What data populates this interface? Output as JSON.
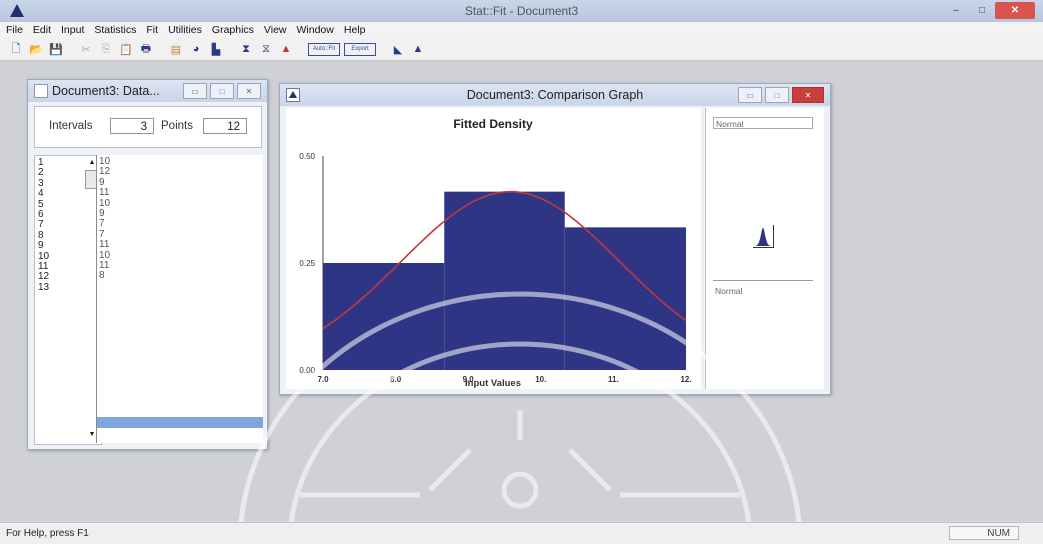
{
  "app": {
    "title": "Stat::Fit - Document3",
    "window_buttons": {
      "minimize": "–",
      "maximize": "□",
      "close": "✕"
    }
  },
  "menu": [
    "File",
    "Edit",
    "Input",
    "Statistics",
    "Fit",
    "Utilities",
    "Graphics",
    "View",
    "Window",
    "Help"
  ],
  "toolbar": {
    "auto_fit_label": "Auto::Fit",
    "export_label": "Export"
  },
  "data_window": {
    "title": "Document3: Data...",
    "intervals_label": "Intervals",
    "intervals_value": "3",
    "points_label": "Points",
    "points_value": "12",
    "row_numbers": [
      "1",
      "2",
      "3",
      "4",
      "5",
      "6",
      "7",
      "8",
      "9",
      "10",
      "11",
      "12",
      "13"
    ],
    "values": [
      "10",
      "12",
      "9",
      "11",
      "10",
      "9",
      "7",
      "7",
      "11",
      "10",
      "11",
      "8"
    ],
    "selected_row": 13
  },
  "graph_window": {
    "title": "Document3: Comparison Graph"
  },
  "chart_data": {
    "type": "bar",
    "title": "Fitted Density",
    "xlabel": "Input Values",
    "ylabel": "",
    "xlim": [
      7.0,
      12.0
    ],
    "ylim": [
      0.0,
      0.5
    ],
    "x_ticks": [
      "7.0",
      "8.0",
      "9.0",
      "10.",
      "11.",
      "12."
    ],
    "y_ticks": [
      "0.50",
      "0.25",
      "0.00"
    ],
    "bins": [
      {
        "from": 7.0,
        "to": 8.67,
        "value": 0.25
      },
      {
        "from": 8.67,
        "to": 10.33,
        "value": 0.4167
      },
      {
        "from": 10.33,
        "to": 12.0,
        "value": 0.3333
      }
    ],
    "bar_color": "#2e3585",
    "curve": {
      "distribution": "Normal",
      "mean": 9.58,
      "sd": 1.51,
      "color": "#c0393b"
    },
    "grid": false
  },
  "legend_pane": {
    "top_entry": "Normal",
    "bottom_entry": "Normal"
  },
  "status": {
    "help_text": "For Help, press F1",
    "num_indicator": "NUM"
  }
}
